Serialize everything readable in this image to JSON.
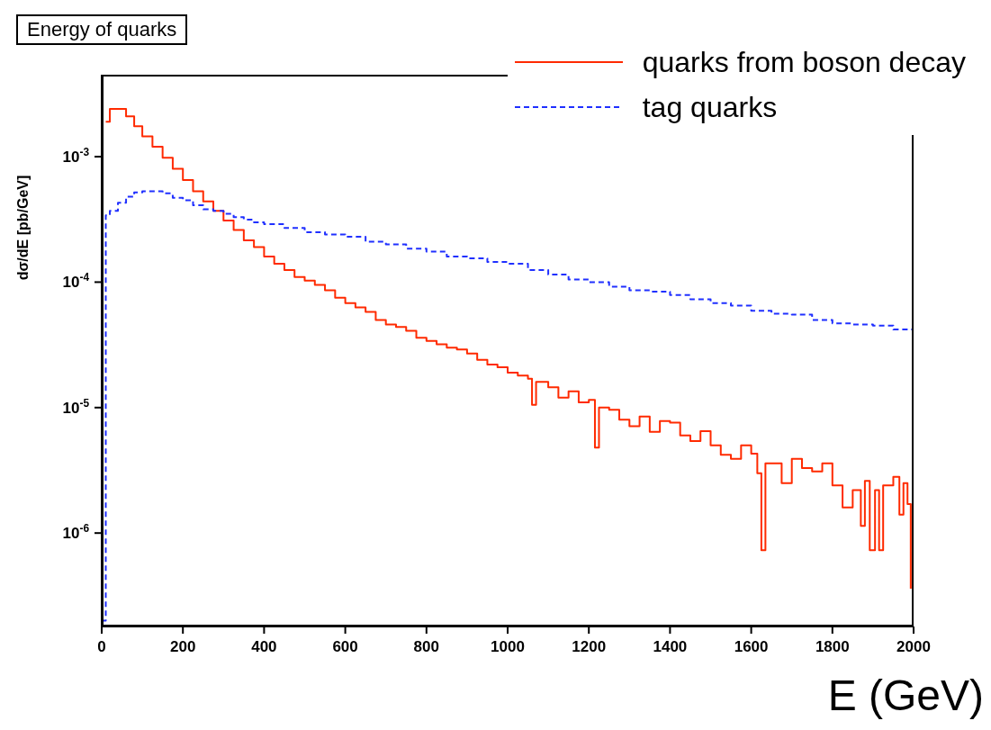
{
  "chart_data": {
    "type": "step",
    "title": "Energy of quarks",
    "xlabel": "E (GeV)",
    "ylabel": "dσ/dE [pb/GeV]",
    "log": "y",
    "legend": "top right",
    "xlim": [
      0,
      2000
    ],
    "xticks": [
      0,
      200,
      400,
      600,
      800,
      1000,
      1200,
      1400,
      1600,
      1800,
      2000
    ],
    "ylim": [
      1.8e-07,
      0.0045
    ],
    "yticks": [
      {
        "value": 1e-06,
        "label": "10$^{-6}$"
      },
      {
        "value": 1e-05,
        "label": "10$^{-5}$"
      },
      {
        "value": 0.0001,
        "label": "10$^{-4}$"
      },
      {
        "value": 0.001,
        "label": "10$^{-3}$"
      }
    ],
    "series": [
      {
        "name": "quarks from boson decay",
        "color": "#ff2a00",
        "line_style": "solid",
        "x": [
          10,
          20,
          40,
          60,
          80,
          100,
          125,
          150,
          175,
          200,
          225,
          250,
          275,
          300,
          325,
          350,
          375,
          400,
          425,
          450,
          475,
          500,
          525,
          550,
          575,
          600,
          625,
          650,
          675,
          700,
          725,
          750,
          775,
          800,
          825,
          850,
          875,
          900,
          925,
          950,
          975,
          1000,
          1025,
          1050,
          1060,
          1070,
          1100,
          1125,
          1150,
          1175,
          1200,
          1215,
          1225,
          1250,
          1275,
          1300,
          1325,
          1350,
          1375,
          1400,
          1425,
          1450,
          1475,
          1500,
          1525,
          1550,
          1575,
          1600,
          1615,
          1625,
          1635,
          1650,
          1675,
          1700,
          1725,
          1750,
          1775,
          1800,
          1825,
          1850,
          1870,
          1880,
          1892,
          1905,
          1915,
          1925,
          1950,
          1965,
          1975,
          1985,
          1993
        ],
        "values": [
          0.0019,
          0.0024,
          0.0024,
          0.0021,
          0.00175,
          0.00145,
          0.0012,
          0.00098,
          0.0008,
          0.00065,
          0.00053,
          0.00044,
          0.00037,
          0.00031,
          0.00026,
          0.000215,
          0.00019,
          0.00016,
          0.00014,
          0.000125,
          0.00011,
          0.000103,
          9.5e-05,
          8.6e-05,
          7.5e-05,
          6.8e-05,
          6.3e-05,
          5.8e-05,
          5e-05,
          4.6e-05,
          4.4e-05,
          4.1e-05,
          3.6e-05,
          3.4e-05,
          3.2e-05,
          3e-05,
          2.9e-05,
          2.7e-05,
          2.4e-05,
          2.2e-05,
          2.1e-05,
          1.9e-05,
          1.8e-05,
          1.7e-05,
          1.05e-05,
          1.6e-05,
          1.45e-05,
          1.2e-05,
          1.35e-05,
          1.1e-05,
          1.15e-05,
          4.8e-06,
          1e-05,
          9.6e-06,
          8e-06,
          7.1e-06,
          8.5e-06,
          6.4e-06,
          7.8e-06,
          7.6e-06,
          6e-06,
          5.4e-06,
          6.5e-06,
          5e-06,
          4.2e-06,
          3.9e-06,
          5e-06,
          4.3e-06,
          3e-06,
          7.3e-07,
          3.6e-06,
          3.6e-06,
          2.5e-06,
          3.9e-06,
          3.3e-06,
          3.1e-06,
          3.6e-06,
          2.4e-06,
          1.6e-06,
          2.2e-06,
          1.14e-06,
          2.6e-06,
          7.3e-07,
          2.2e-06,
          7.3e-07,
          2.4e-06,
          2.8e-06,
          1.4e-06,
          2.5e-06,
          1.7e-06,
          3.6e-07
        ]
      },
      {
        "name": "tag quarks",
        "color": "#2030ff",
        "line_style": "dashed",
        "x": [
          0,
          10,
          20,
          40,
          60,
          80,
          100,
          125,
          150,
          175,
          200,
          225,
          250,
          275,
          300,
          325,
          350,
          375,
          400,
          450,
          500,
          550,
          600,
          650,
          700,
          750,
          800,
          850,
          900,
          950,
          1000,
          1050,
          1100,
          1150,
          1200,
          1250,
          1300,
          1350,
          1400,
          1450,
          1500,
          1550,
          1600,
          1650,
          1700,
          1750,
          1800,
          1850,
          1900,
          1950,
          2000
        ],
        "values": [
          2e-07,
          0.00034,
          0.00037,
          0.00043,
          0.00048,
          0.00052,
          0.00053,
          0.00053,
          0.00051,
          0.00047,
          0.00045,
          0.00041,
          0.00038,
          0.00037,
          0.00035,
          0.00033,
          0.000315,
          0.0003,
          0.00029,
          0.00027,
          0.00025,
          0.00024,
          0.00023,
          0.00021,
          0.0002,
          0.000185,
          0.000175,
          0.00016,
          0.000155,
          0.000145,
          0.00014,
          0.000125,
          0.000115,
          0.000105,
          0.0001,
          9.2e-05,
          8.6e-05,
          8.4e-05,
          7.9e-05,
          7.3e-05,
          6.8e-05,
          6.5e-05,
          5.9e-05,
          5.6e-05,
          5.5e-05,
          5e-05,
          4.7e-05,
          4.6e-05,
          4.5e-05,
          4.2e-05,
          4e-05
        ]
      }
    ]
  }
}
